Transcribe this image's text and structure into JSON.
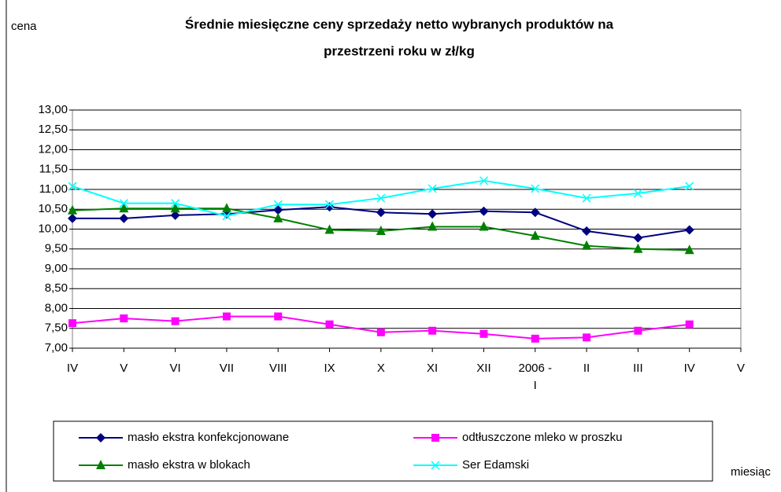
{
  "chart_data": {
    "type": "line",
    "title": [
      "Średnie miesięczne ceny sprzedaży netto  wybranych produktów na",
      "przestrzeni roku w zł/kg"
    ],
    "y_label": "cena",
    "x_label": "miesiąc",
    "categories": [
      "IV",
      "V",
      "VI",
      "VII",
      "VIII",
      "IX",
      "X",
      "XI",
      "XII",
      "2006 - I",
      "II",
      "III",
      "IV",
      "V"
    ],
    "series": [
      {
        "name": "masło ekstra konfekcjonowane",
        "color": "#000080",
        "marker": "diamond",
        "values": [
          10.27,
          10.27,
          10.35,
          10.38,
          10.48,
          10.56,
          10.42,
          10.38,
          10.45,
          10.42,
          9.95,
          9.78,
          9.98,
          null
        ]
      },
      {
        "name": "odtłuszczone mleko w  proszku",
        "color": "#ff00ff",
        "marker": "square",
        "values": [
          7.63,
          7.75,
          7.68,
          7.8,
          7.8,
          7.6,
          7.4,
          7.44,
          7.36,
          7.24,
          7.27,
          7.44,
          7.6,
          null
        ]
      },
      {
        "name": "masło ekstra w  blokach",
        "color": "#008000",
        "marker": "triangle",
        "values": [
          10.47,
          10.52,
          10.52,
          10.52,
          10.27,
          9.98,
          9.95,
          10.06,
          10.06,
          9.83,
          9.58,
          9.5,
          9.47,
          null
        ]
      },
      {
        "name": "Ser Edamski",
        "color": "#00ffff",
        "marker": "x",
        "values": [
          11.08,
          10.65,
          10.65,
          10.33,
          10.62,
          10.62,
          10.78,
          11.02,
          11.22,
          11.02,
          10.78,
          10.9,
          11.08,
          null
        ]
      }
    ],
    "ylim": [
      7,
      13
    ],
    "yticks": [
      {
        "value": 7,
        "label": "7,00"
      },
      {
        "value": 7.5,
        "label": "7,50"
      },
      {
        "value": 8,
        "label": "8,00"
      },
      {
        "value": 8.5,
        "label": "8,50"
      },
      {
        "value": 9,
        "label": "9,00"
      },
      {
        "value": 9.5,
        "label": "9,50"
      },
      {
        "value": 10,
        "label": "10,00"
      },
      {
        "value": 10.5,
        "label": "10,50"
      },
      {
        "value": 11,
        "label": "11,00"
      },
      {
        "value": 11.5,
        "label": "11,50"
      },
      {
        "value": 12,
        "label": "12,00"
      },
      {
        "value": 12.5,
        "label": "12,50"
      },
      {
        "value": 13,
        "label": "13,00"
      }
    ],
    "grid": true
  }
}
